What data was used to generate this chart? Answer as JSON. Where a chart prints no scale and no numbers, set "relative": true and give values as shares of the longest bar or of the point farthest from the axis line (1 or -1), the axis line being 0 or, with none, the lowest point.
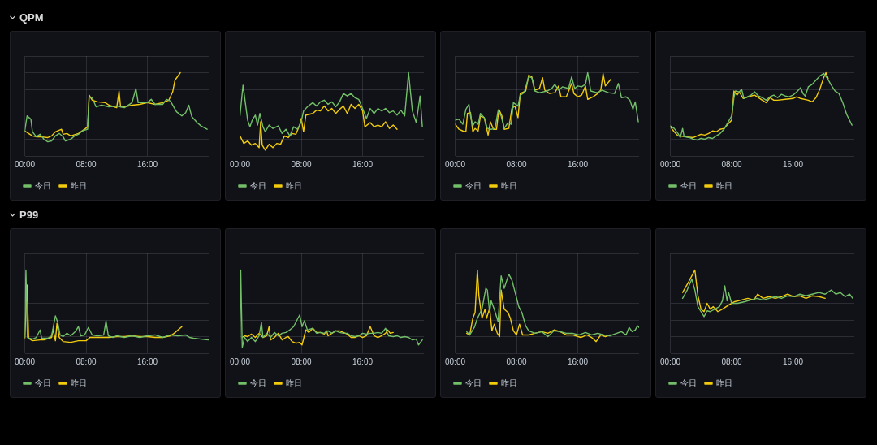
{
  "chart_data": [
    {
      "type": "other",
      "title": "QPM"
    },
    {
      "type": "line",
      "relative": true,
      "xlim": [
        0,
        24
      ],
      "xticks": [
        {
          "value": 0,
          "label": "00:00"
        },
        {
          "value": 8,
          "label": "08:00"
        },
        {
          "value": 16,
          "label": "16:00"
        }
      ],
      "grid": true,
      "legend": "bottom left",
      "tick_labels": "x",
      "series": [
        {
          "name": "今日",
          "color": "#73bf69",
          "x": [
            0,
            0.3,
            0.8,
            1,
            1.5,
            2,
            2.5,
            3,
            3.5,
            4,
            4.5,
            5,
            5.3,
            6,
            6.5,
            7,
            7.5,
            8.2,
            8.4,
            8.8,
            9.3,
            10,
            11,
            12,
            13,
            14,
            14.5,
            14.8,
            16,
            16.5,
            17,
            18,
            18.5,
            19,
            19.8,
            20.5,
            21,
            21.4,
            21.8,
            22.5,
            23,
            23.8
          ],
          "values": [
            0.3,
            0.48,
            0.44,
            0.29,
            0.23,
            0.26,
            0.2,
            0.17,
            0.18,
            0.24,
            0.27,
            0.23,
            0.18,
            0.2,
            0.24,
            0.26,
            0.3,
            0.32,
            0.71,
            0.7,
            0.59,
            0.61,
            0.59,
            0.6,
            0.58,
            0.64,
            0.81,
            0.64,
            0.64,
            0.68,
            0.62,
            0.62,
            0.68,
            0.66,
            0.53,
            0.48,
            0.52,
            0.61,
            0.47,
            0.4,
            0.36,
            0.32
          ]
        },
        {
          "name": "昨日",
          "color": "#f2cc0c",
          "x": [
            0,
            0.5,
            1,
            1.5,
            2,
            3,
            3.5,
            4,
            4.8,
            5,
            5.5,
            6,
            7,
            7.8,
            8.2,
            8.4,
            8.8,
            9.5,
            10.5,
            11,
            12,
            12.3,
            12.5,
            13,
            14,
            15,
            16,
            17,
            18,
            18.8,
            19.3,
            19.6,
            20.3
          ],
          "values": [
            0.3,
            0.27,
            0.24,
            0.23,
            0.23,
            0.22,
            0.24,
            0.29,
            0.32,
            0.26,
            0.27,
            0.24,
            0.27,
            0.32,
            0.35,
            0.73,
            0.67,
            0.65,
            0.64,
            0.61,
            0.58,
            0.78,
            0.59,
            0.59,
            0.61,
            0.62,
            0.64,
            0.62,
            0.64,
            0.67,
            0.77,
            0.91,
            1
          ]
        }
      ]
    },
    {
      "type": "line",
      "relative": true,
      "xlim": [
        0,
        24
      ],
      "xticks": [
        {
          "value": 0,
          "label": "00:00"
        },
        {
          "value": 8,
          "label": "08:00"
        },
        {
          "value": 16,
          "label": "16:00"
        }
      ],
      "grid": true,
      "legend": "bottom left",
      "tick_labels": "x",
      "series": [
        {
          "name": "今日",
          "color": "#73bf69",
          "x": [
            0,
            0.4,
            0.7,
            1,
            1.3,
            1.6,
            2,
            2.3,
            2.6,
            3,
            3.3,
            3.8,
            4.3,
            5,
            5.5,
            6,
            6.5,
            7,
            7.5,
            8,
            8.3,
            8.8,
            9.5,
            10,
            10.5,
            11,
            11.5,
            12,
            12.5,
            13,
            13.5,
            14,
            14.5,
            15,
            15.5,
            16,
            16.5,
            17,
            17.5,
            18,
            18.5,
            19,
            19.5,
            20,
            20.5,
            21,
            21.5,
            22,
            22.5,
            23,
            23.5,
            23.8
          ],
          "values": [
            0.48,
            0.85,
            0.64,
            0.43,
            0.35,
            0.43,
            0.49,
            0.37,
            0.51,
            0.35,
            0.29,
            0.37,
            0.33,
            0.36,
            0.27,
            0.32,
            0.24,
            0.35,
            0.32,
            0.41,
            0.54,
            0.59,
            0.64,
            0.6,
            0.65,
            0.67,
            0.62,
            0.65,
            0.59,
            0.65,
            0.75,
            0.72,
            0.75,
            0.7,
            0.68,
            0.57,
            0.45,
            0.57,
            0.51,
            0.57,
            0.54,
            0.57,
            0.52,
            0.54,
            0.49,
            0.55,
            0.48,
            1,
            0.54,
            0.4,
            0.72,
            0.35
          ]
        },
        {
          "name": "昨日",
          "color": "#f2cc0c",
          "x": [
            0,
            0.5,
            1,
            1.5,
            2,
            2.5,
            2.7,
            2.9,
            3.3,
            3.8,
            4.3,
            4.8,
            5.3,
            5.8,
            6.3,
            6.8,
            7.3,
            7.8,
            8,
            8.3,
            8.6,
            9.5,
            10,
            10.5,
            11,
            11.5,
            12,
            12.5,
            13,
            13.5,
            14,
            14.5,
            15,
            15.5,
            16,
            16.3,
            17,
            17.5,
            18,
            18.5,
            19,
            19.5,
            20,
            20.5
          ],
          "values": [
            0.24,
            0.15,
            0.18,
            0.13,
            0.15,
            0.1,
            0.41,
            0.13,
            0.07,
            0.14,
            0.1,
            0.15,
            0.14,
            0.24,
            0.22,
            0.27,
            0.26,
            0.37,
            0.45,
            0.29,
            0.49,
            0.51,
            0.55,
            0.54,
            0.6,
            0.54,
            0.57,
            0.51,
            0.56,
            0.6,
            0.51,
            0.62,
            0.57,
            0.62,
            0.54,
            0.35,
            0.4,
            0.35,
            0.37,
            0.35,
            0.41,
            0.33,
            0.37,
            0.32
          ]
        }
      ]
    },
    {
      "type": "line",
      "relative": true,
      "xlim": [
        0,
        24
      ],
      "xticks": [
        {
          "value": 0,
          "label": "00:00"
        },
        {
          "value": 8,
          "label": "08:00"
        },
        {
          "value": 16,
          "label": "16:00"
        }
      ],
      "grid": true,
      "legend": "bottom left",
      "tick_labels": "x",
      "series": [
        {
          "name": "今日",
          "color": "#73bf69",
          "x": [
            0,
            0.5,
            1,
            1.4,
            1.8,
            2,
            2.3,
            2.6,
            3,
            3.3,
            3.8,
            4.2,
            4.7,
            5.2,
            5.6,
            6,
            6.4,
            6.9,
            7.3,
            7.6,
            8.2,
            8.5,
            9,
            9.6,
            10,
            10.4,
            11,
            12,
            12.6,
            13,
            13.5,
            14,
            14.8,
            15.2,
            15.6,
            16,
            16.5,
            17,
            17.3,
            17.7,
            18.5,
            19.2,
            20,
            20.8,
            21.3,
            21.7,
            22.3,
            22.8,
            23.2,
            23.5,
            23.9
          ],
          "values": [
            0.43,
            0.44,
            0.38,
            0.56,
            0.62,
            0.48,
            0.36,
            0.41,
            0.38,
            0.51,
            0.46,
            0.33,
            0.32,
            0.33,
            0.54,
            0.48,
            0.33,
            0.4,
            0.38,
            0.64,
            0.6,
            0.73,
            0.76,
            0.95,
            0.94,
            0.78,
            0.76,
            0.78,
            0.81,
            0.86,
            0.79,
            0.83,
            0.81,
            0.95,
            0.81,
            0.84,
            0.83,
            0.86,
            1,
            0.78,
            0.76,
            0.79,
            0.76,
            0.75,
            0.87,
            0.7,
            0.71,
            0.67,
            0.56,
            0.65,
            0.41
          ]
        },
        {
          "name": "昨日",
          "color": "#f2cc0c",
          "x": [
            0,
            0.5,
            1,
            1.4,
            1.6,
            2,
            2.3,
            2.6,
            3,
            3.3,
            3.8,
            4.3,
            4.6,
            5,
            5.4,
            5.7,
            6.1,
            6.4,
            7,
            7.4,
            7.8,
            8.2,
            8.5,
            9.2,
            9.6,
            10,
            10.4,
            11,
            11.4,
            11.7,
            12.3,
            13,
            13.5,
            13.8,
            14.5,
            15.2,
            15.5,
            16,
            16.5,
            17,
            17.3,
            18,
            18.6,
            19,
            19.3,
            19.6,
            20.3
          ],
          "values": [
            0.38,
            0.32,
            0.3,
            0.29,
            0.51,
            0.52,
            0.29,
            0.33,
            0.3,
            0.48,
            0.46,
            0.25,
            0.41,
            0.32,
            0.32,
            0.56,
            0.48,
            0.32,
            0.33,
            0.57,
            0.6,
            0.46,
            0.75,
            0.78,
            0.97,
            0.95,
            0.79,
            0.81,
            0.94,
            0.79,
            0.75,
            0.76,
            0.84,
            0.71,
            0.71,
            0.87,
            0.75,
            0.71,
            0.73,
            0.84,
            0.68,
            0.71,
            0.75,
            0.79,
            0.99,
            0.84,
            0.92
          ]
        }
      ]
    },
    {
      "type": "line",
      "relative": true,
      "xlim": [
        0,
        24
      ],
      "xticks": [
        {
          "value": 0,
          "label": "00:00"
        },
        {
          "value": 8,
          "label": "08:00"
        },
        {
          "value": 16,
          "label": "16:00"
        }
      ],
      "grid": true,
      "legend": "bottom left",
      "tick_labels": "x",
      "series": [
        {
          "name": "今日",
          "color": "#73bf69",
          "x": [
            0,
            0.5,
            1,
            1.3,
            1.6,
            1.8,
            2.5,
            3,
            3.5,
            4,
            4.5,
            5,
            5.5,
            6,
            6.5,
            7,
            7.5,
            8,
            8.3,
            8.5,
            9,
            9.3,
            9.6,
            10.5,
            11,
            11.5,
            12,
            12.5,
            13,
            13.5,
            14,
            14.5,
            15,
            15.5,
            16,
            16.5,
            17,
            17.3,
            17.6,
            18,
            18.5,
            19,
            19.5,
            20,
            20.5,
            21,
            21.5,
            22,
            22.5,
            23,
            23.7
          ],
          "values": [
            0.36,
            0.33,
            0.27,
            0.22,
            0.33,
            0.23,
            0.22,
            0.2,
            0.19,
            0.21,
            0.2,
            0.22,
            0.21,
            0.24,
            0.27,
            0.32,
            0.4,
            0.48,
            0.7,
            0.78,
            0.77,
            0.8,
            0.69,
            0.73,
            0.77,
            0.72,
            0.7,
            0.67,
            0.71,
            0.73,
            0.7,
            0.74,
            0.72,
            0.71,
            0.73,
            0.77,
            0.82,
            0.75,
            0.72,
            0.83,
            0.86,
            0.91,
            0.96,
            0.99,
            0.93,
            0.85,
            0.78,
            0.75,
            0.64,
            0.5,
            0.37
          ]
        },
        {
          "name": "昨日",
          "color": "#f2cc0c",
          "x": [
            0,
            0.5,
            1,
            2,
            3,
            3.5,
            4,
            4.5,
            5,
            5.5,
            6,
            6.5,
            7,
            7.5,
            8,
            8.3,
            8.7,
            9,
            9.5,
            10.5,
            11,
            12,
            12.5,
            13,
            13.5,
            14,
            15,
            16,
            16.5,
            17,
            18,
            18.5,
            19,
            19.5,
            20,
            20.3,
            20.6
          ],
          "values": [
            0.35,
            0.29,
            0.24,
            0.23,
            0.22,
            0.24,
            0.26,
            0.25,
            0.27,
            0.3,
            0.29,
            0.32,
            0.33,
            0.38,
            0.43,
            0.78,
            0.73,
            0.77,
            0.69,
            0.72,
            0.73,
            0.67,
            0.64,
            0.7,
            0.67,
            0.67,
            0.68,
            0.69,
            0.71,
            0.69,
            0.67,
            0.65,
            0.7,
            0.8,
            0.94,
            1,
            0.93
          ]
        }
      ]
    },
    {
      "type": "other",
      "title": "P99"
    },
    {
      "type": "line",
      "relative": true,
      "xlim": [
        0,
        24
      ],
      "xticks": [
        {
          "value": 0,
          "label": "00:00"
        },
        {
          "value": 8,
          "label": "08:00"
        },
        {
          "value": 16,
          "label": "16:00"
        }
      ],
      "grid": true,
      "legend": "bottom left",
      "tick_labels": "x",
      "series": [
        {
          "name": "今日",
          "color": "#73bf69",
          "x": [
            0,
            0.15,
            0.35,
            0.6,
            1,
            1.5,
            2,
            2.2,
            3,
            3.5,
            4,
            4.3,
            4.6,
            5,
            5.5,
            6,
            6.6,
            7,
            7.3,
            7.8,
            8.3,
            8.8,
            9.5,
            10.3,
            10.6,
            10.9,
            11.5,
            12,
            13,
            14,
            15,
            16,
            17,
            18,
            19,
            20,
            21,
            21.5,
            22,
            23,
            24
          ],
          "values": [
            0.19,
            1,
            0.19,
            0.18,
            0.17,
            0.19,
            0.28,
            0.18,
            0.18,
            0.21,
            0.45,
            0.37,
            0.22,
            0.2,
            0.24,
            0.21,
            0.26,
            0.32,
            0.21,
            0.22,
            0.31,
            0.22,
            0.21,
            0.22,
            0.39,
            0.21,
            0.19,
            0.21,
            0.19,
            0.21,
            0.19,
            0.21,
            0.22,
            0.19,
            0.22,
            0.21,
            0.22,
            0.19,
            0.18,
            0.17,
            0.16
          ]
        },
        {
          "name": "昨日",
          "color": "#f2cc0c",
          "x": [
            0,
            0.3,
            0.5,
            1,
            2,
            2.5,
            3.5,
            3.7,
            4,
            4.2,
            4.5,
            5,
            6,
            7,
            8,
            8.5,
            9,
            10,
            11,
            12,
            13,
            14,
            15,
            16,
            17,
            18,
            19,
            19.5,
            20,
            20.5
          ],
          "values": [
            0.18,
            0.82,
            0.18,
            0.15,
            0.16,
            0.16,
            0.19,
            0.29,
            0.15,
            0.36,
            0.19,
            0.14,
            0.13,
            0.15,
            0.15,
            0.19,
            0.19,
            0.19,
            0.19,
            0.2,
            0.2,
            0.21,
            0.2,
            0.2,
            0.19,
            0.19,
            0.21,
            0.24,
            0.28,
            0.32
          ]
        }
      ]
    },
    {
      "type": "line",
      "relative": true,
      "xlim": [
        0,
        24
      ],
      "xticks": [
        {
          "value": 0,
          "label": "00:00"
        },
        {
          "value": 8,
          "label": "08:00"
        },
        {
          "value": 16,
          "label": "16:00"
        }
      ],
      "grid": true,
      "legend": "bottom left",
      "tick_labels": "x",
      "series": [
        {
          "name": "今日",
          "color": "#73bf69",
          "x": [
            0,
            0.1,
            0.3,
            0.6,
            1,
            1.5,
            2,
            2.5,
            2.8,
            3,
            3.5,
            4,
            4.5,
            5,
            5.5,
            6,
            6.5,
            7,
            7.5,
            7.8,
            8.1,
            8.4,
            8.8,
            9.5,
            10,
            10.5,
            11,
            11.5,
            12,
            12.5,
            13,
            13.5,
            14,
            14.5,
            15,
            15.5,
            16,
            16.5,
            17,
            17.5,
            18,
            18.5,
            19,
            19.4,
            20,
            20.5,
            21,
            21.5,
            22,
            22.5,
            23,
            23.3,
            23.8
          ],
          "values": [
            0.16,
            1,
            0.07,
            0.19,
            0.14,
            0.19,
            0.14,
            0.21,
            0.37,
            0.19,
            0.24,
            0.19,
            0.25,
            0.21,
            0.24,
            0.25,
            0.28,
            0.32,
            0.41,
            0.46,
            0.32,
            0.39,
            0.28,
            0.3,
            0.24,
            0.25,
            0.24,
            0.27,
            0.24,
            0.27,
            0.25,
            0.24,
            0.24,
            0.21,
            0.2,
            0.21,
            0.24,
            0.23,
            0.24,
            0.24,
            0.25,
            0.24,
            0.3,
            0.21,
            0.2,
            0.21,
            0.19,
            0.2,
            0.19,
            0.16,
            0.17,
            0.1,
            0.16
          ]
        },
        {
          "name": "昨日",
          "color": "#f2cc0c",
          "x": [
            0.3,
            0.6,
            1,
            1.5,
            2,
            2.5,
            3,
            3.5,
            3.8,
            4,
            4.5,
            5,
            5.5,
            6,
            6.3,
            6.8,
            7.3,
            7.8,
            8.1,
            8.4,
            8.6,
            9,
            9.5,
            10,
            10.5,
            11,
            11.3,
            11.5,
            12,
            12.5,
            13,
            13.5,
            14,
            14.5,
            15,
            15.5,
            16,
            16.5,
            17,
            17.5,
            18,
            18.5,
            19,
            19.3,
            19.6,
            20
          ],
          "values": [
            0.19,
            0.21,
            0.2,
            0.23,
            0.19,
            0.24,
            0.19,
            0.21,
            0.32,
            0.16,
            0.19,
            0.24,
            0.16,
            0.19,
            0.2,
            0.14,
            0.12,
            0.13,
            0.1,
            0.21,
            0.28,
            0.25,
            0.3,
            0.25,
            0.25,
            0.23,
            0.27,
            0.21,
            0.24,
            0.27,
            0.27,
            0.25,
            0.23,
            0.19,
            0.19,
            0.21,
            0.19,
            0.21,
            0.32,
            0.21,
            0.19,
            0.21,
            0.24,
            0.28,
            0.24,
            0.25
          ]
        }
      ]
    },
    {
      "type": "line",
      "relative": true,
      "xlim": [
        0,
        24
      ],
      "xticks": [
        {
          "value": 0,
          "label": "00:00"
        },
        {
          "value": 8,
          "label": "08:00"
        },
        {
          "value": 16,
          "label": "16:00"
        }
      ],
      "grid": true,
      "legend": "bottom left",
      "tick_labels": "x",
      "series": [
        {
          "name": "今日",
          "color": "#73bf69",
          "x": [
            1.5,
            1.9,
            2.5,
            2.9,
            3.5,
            4,
            4.2,
            4.5,
            4.7,
            5.1,
            5.6,
            6,
            6.4,
            7,
            7.4,
            7.8,
            8.3,
            8.7,
            9.2,
            9.6,
            10.4,
            11.3,
            12.1,
            12.9,
            13.7,
            14.5,
            15.3,
            16.2,
            17,
            17.8,
            18.6,
            19.4,
            20.2,
            21.1,
            21.7,
            22.3,
            22.7,
            23.1,
            23.5,
            23.8,
            24
          ],
          "values": [
            0.26,
            0.22,
            0.31,
            0.42,
            0.53,
            0.78,
            0.76,
            0.49,
            0.63,
            0.53,
            0.38,
            0.93,
            0.78,
            0.95,
            0.88,
            0.74,
            0.56,
            0.49,
            0.33,
            0.27,
            0.24,
            0.26,
            0.2,
            0.27,
            0.26,
            0.24,
            0.24,
            0.22,
            0.25,
            0.22,
            0.24,
            0.22,
            0.21,
            0.24,
            0.26,
            0.22,
            0.31,
            0.26,
            0.28,
            0.33,
            0.31
          ]
        },
        {
          "name": "昨日",
          "color": "#f2cc0c",
          "x": [
            1.5,
            1.9,
            2.3,
            2.6,
            2.9,
            3.1,
            3.5,
            3.9,
            4.1,
            4.5,
            4.8,
            5.1,
            5.5,
            5.8,
            6,
            6.4,
            6.9,
            7.2,
            7.6,
            8,
            8.4,
            8.8,
            9.6,
            10.4,
            11.3,
            12.1,
            12.9,
            13.7,
            14.5,
            15.3,
            16.4,
            17.2,
            17.8,
            18.4,
            19,
            19.6,
            20.2
          ],
          "values": [
            0.24,
            0.22,
            0.42,
            0.49,
            1,
            0.69,
            0.42,
            0.53,
            0.42,
            0.54,
            0.27,
            0.35,
            0.24,
            0.2,
            0.76,
            0.53,
            0.49,
            0.42,
            0.27,
            0.22,
            0.35,
            0.22,
            0.22,
            0.24,
            0.26,
            0.24,
            0.28,
            0.26,
            0.22,
            0.22,
            0.19,
            0.22,
            0.19,
            0.14,
            0.22,
            0.2,
            0.22
          ]
        }
      ]
    },
    {
      "type": "line",
      "relative": true,
      "xlim": [
        0,
        24
      ],
      "xticks": [
        {
          "value": 0,
          "label": "00:00"
        },
        {
          "value": 8,
          "label": "08:00"
        },
        {
          "value": 16,
          "label": "16:00"
        }
      ],
      "grid": true,
      "legend": "bottom left",
      "tick_labels": "x",
      "series": [
        {
          "name": "今日",
          "color": "#73bf69",
          "x": [
            1.6,
            2.2,
            2.8,
            3.2,
            3.6,
            4,
            4.4,
            4.8,
            5.2,
            5.8,
            6.4,
            6.8,
            7.1,
            7.4,
            7.6,
            8,
            8.8,
            9.7,
            10.5,
            11.3,
            12.1,
            12.9,
            13.7,
            14.5,
            15.3,
            16.1,
            16.9,
            17.7,
            18.5,
            19.4,
            20.2,
            21,
            21.6,
            22.2,
            22.8,
            23.4,
            23.8
          ],
          "values": [
            0.66,
            0.76,
            0.89,
            0.76,
            0.56,
            0.5,
            0.44,
            0.51,
            0.5,
            0.53,
            0.56,
            0.63,
            0.81,
            0.63,
            0.73,
            0.6,
            0.6,
            0.62,
            0.64,
            0.66,
            0.64,
            0.66,
            0.68,
            0.66,
            0.69,
            0.68,
            0.71,
            0.69,
            0.71,
            0.73,
            0.71,
            0.76,
            0.71,
            0.73,
            0.68,
            0.71,
            0.66
          ]
        },
        {
          "name": "昨日",
          "color": "#f2cc0c",
          "x": [
            1.6,
            2.4,
            3.2,
            3.6,
            4,
            4.4,
            4.8,
            5.2,
            5.6,
            6.2,
            6.8,
            7.6,
            8.4,
            9.3,
            10.1,
            10.9,
            11.4,
            12.1,
            12.9,
            13.7,
            14.5,
            15.3,
            16.1,
            16.9,
            17.7,
            18.5,
            19.4,
            20.2
          ],
          "values": [
            0.73,
            0.86,
            1,
            0.69,
            0.53,
            0.5,
            0.6,
            0.53,
            0.56,
            0.5,
            0.53,
            0.58,
            0.62,
            0.64,
            0.66,
            0.64,
            0.71,
            0.66,
            0.68,
            0.66,
            0.68,
            0.71,
            0.68,
            0.69,
            0.66,
            0.69,
            0.68,
            0.66
          ]
        }
      ]
    }
  ]
}
